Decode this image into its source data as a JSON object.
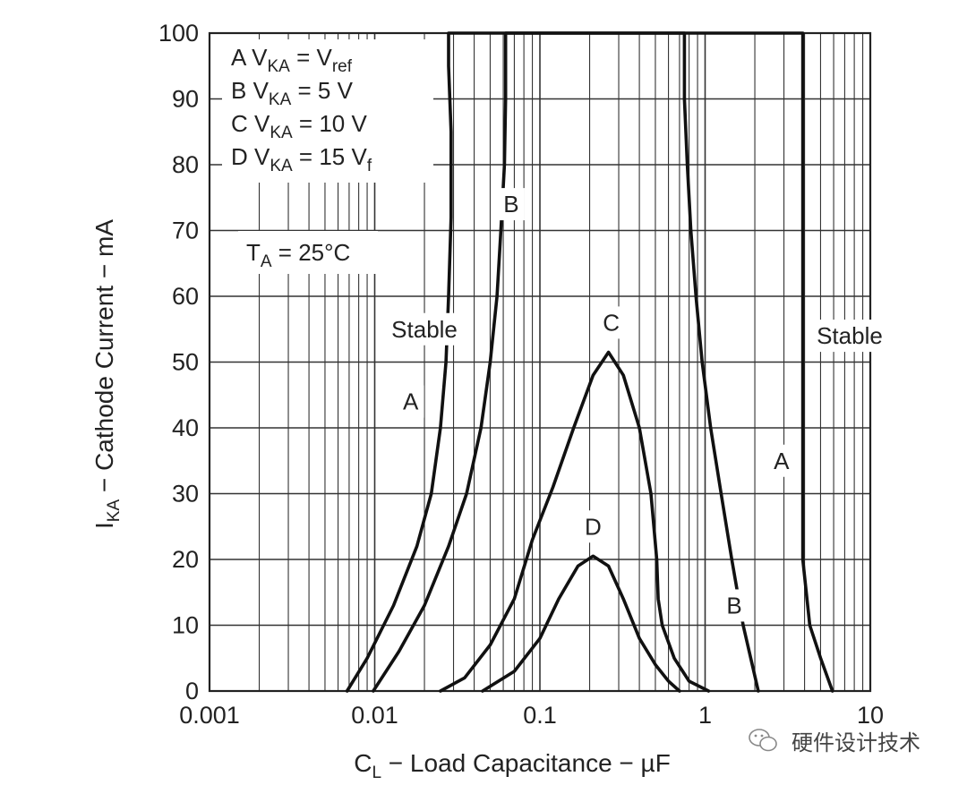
{
  "chart_data": {
    "type": "line",
    "xscale": "log",
    "xlim": [
      0.001,
      10
    ],
    "ylim": [
      0,
      100
    ],
    "grid": true,
    "x_ticks": [
      "0.001",
      "0.01",
      "0.1",
      "1",
      "10"
    ],
    "y_ticks": [
      "0",
      "10",
      "20",
      "30",
      "40",
      "50",
      "60",
      "70",
      "80",
      "90",
      "100"
    ],
    "xlabel": {
      "main": "C",
      "sub": "L",
      "rest": " − Load Capacitance − µF"
    },
    "ylabel": {
      "main": "I",
      "sub": "KA",
      "rest": " − Cathode Current − mA"
    },
    "legend": [
      {
        "key": "A",
        "pre": "A V",
        "sub": "KA",
        "mid": " = V",
        "sub2": "ref",
        "post": ""
      },
      {
        "key": "B",
        "pre": "B V",
        "sub": "KA",
        "mid": " = 5 V",
        "sub2": "",
        "post": ""
      },
      {
        "key": "C",
        "pre": "C V",
        "sub": "KA",
        "mid": " = 10 V",
        "sub2": "",
        "post": ""
      },
      {
        "key": "D",
        "pre": "D V",
        "sub": "KA",
        "mid": " = 15 V",
        "sub2": "f",
        "post": ""
      }
    ],
    "condition": {
      "pre": "T",
      "sub": "A",
      "post": " = 25°C"
    },
    "series": [
      {
        "name": "A",
        "segments": [
          [
            [
              0.0068,
              0
            ],
            [
              0.009,
              5
            ],
            [
              0.013,
              13
            ],
            [
              0.018,
              22
            ],
            [
              0.022,
              30
            ],
            [
              0.025,
              40
            ],
            [
              0.027,
              50
            ],
            [
              0.028,
              60
            ],
            [
              0.029,
              72
            ],
            [
              0.029,
              85
            ],
            [
              0.028,
              95
            ],
            [
              0.028,
              100
            ],
            [
              3.9,
              100
            ],
            [
              3.9,
              100
            ],
            [
              3.9,
              80
            ],
            [
              3.9,
              60
            ],
            [
              3.9,
              40
            ],
            [
              3.9,
              20
            ],
            [
              4.3,
              10
            ],
            [
              5.0,
              5
            ],
            [
              5.9,
              0
            ]
          ]
        ]
      },
      {
        "name": "B",
        "segments": [
          [
            [
              0.0098,
              0
            ],
            [
              0.014,
              6
            ],
            [
              0.02,
              13
            ],
            [
              0.028,
              22
            ],
            [
              0.036,
              30
            ],
            [
              0.044,
              40
            ],
            [
              0.05,
              50
            ],
            [
              0.055,
              60
            ],
            [
              0.058,
              70
            ],
            [
              0.061,
              80
            ],
            [
              0.062,
              90
            ],
            [
              0.062,
              100
            ],
            [
              0.75,
              100
            ],
            [
              0.75,
              90
            ],
            [
              0.78,
              80
            ],
            [
              0.82,
              70
            ],
            [
              0.88,
              60
            ],
            [
              0.96,
              50
            ],
            [
              1.08,
              40
            ],
            [
              1.25,
              30
            ],
            [
              1.45,
              20
            ],
            [
              1.7,
              10
            ],
            [
              2.1,
              0
            ]
          ]
        ]
      },
      {
        "name": "C",
        "segments": [
          [
            [
              0.025,
              0
            ],
            [
              0.035,
              2
            ],
            [
              0.05,
              7
            ],
            [
              0.07,
              14
            ],
            [
              0.09,
              23
            ],
            [
              0.12,
              31
            ],
            [
              0.16,
              40
            ],
            [
              0.21,
              48
            ],
            [
              0.26,
              51.5
            ],
            [
              0.32,
              48
            ],
            [
              0.4,
              40
            ],
            [
              0.47,
              30
            ],
            [
              0.51,
              20
            ],
            [
              0.52,
              14
            ],
            [
              0.55,
              10
            ],
            [
              0.65,
              5
            ],
            [
              0.8,
              1.5
            ],
            [
              1.05,
              0
            ]
          ]
        ]
      },
      {
        "name": "D",
        "segments": [
          [
            [
              0.045,
              0
            ],
            [
              0.07,
              3
            ],
            [
              0.1,
              8
            ],
            [
              0.13,
              14
            ],
            [
              0.17,
              19
            ],
            [
              0.21,
              20.5
            ],
            [
              0.26,
              19
            ],
            [
              0.32,
              14
            ],
            [
              0.4,
              8
            ],
            [
              0.5,
              4
            ],
            [
              0.6,
              1.5
            ],
            [
              0.7,
              0
            ]
          ]
        ]
      }
    ],
    "annotations": [
      {
        "text": "Stable",
        "x": 0.02,
        "y": 55
      },
      {
        "text": "Stable",
        "x": 7.5,
        "y": 54
      },
      {
        "text": "A",
        "x": 0.0165,
        "y": 44
      },
      {
        "text": "A",
        "x": 2.9,
        "y": 35
      },
      {
        "text": "B",
        "x": 0.067,
        "y": 74
      },
      {
        "text": "B",
        "x": 1.5,
        "y": 13
      },
      {
        "text": "C",
        "x": 0.27,
        "y": 56
      },
      {
        "text": "D",
        "x": 0.21,
        "y": 25
      }
    ]
  },
  "watermark": {
    "text": "硬件设计技术"
  }
}
